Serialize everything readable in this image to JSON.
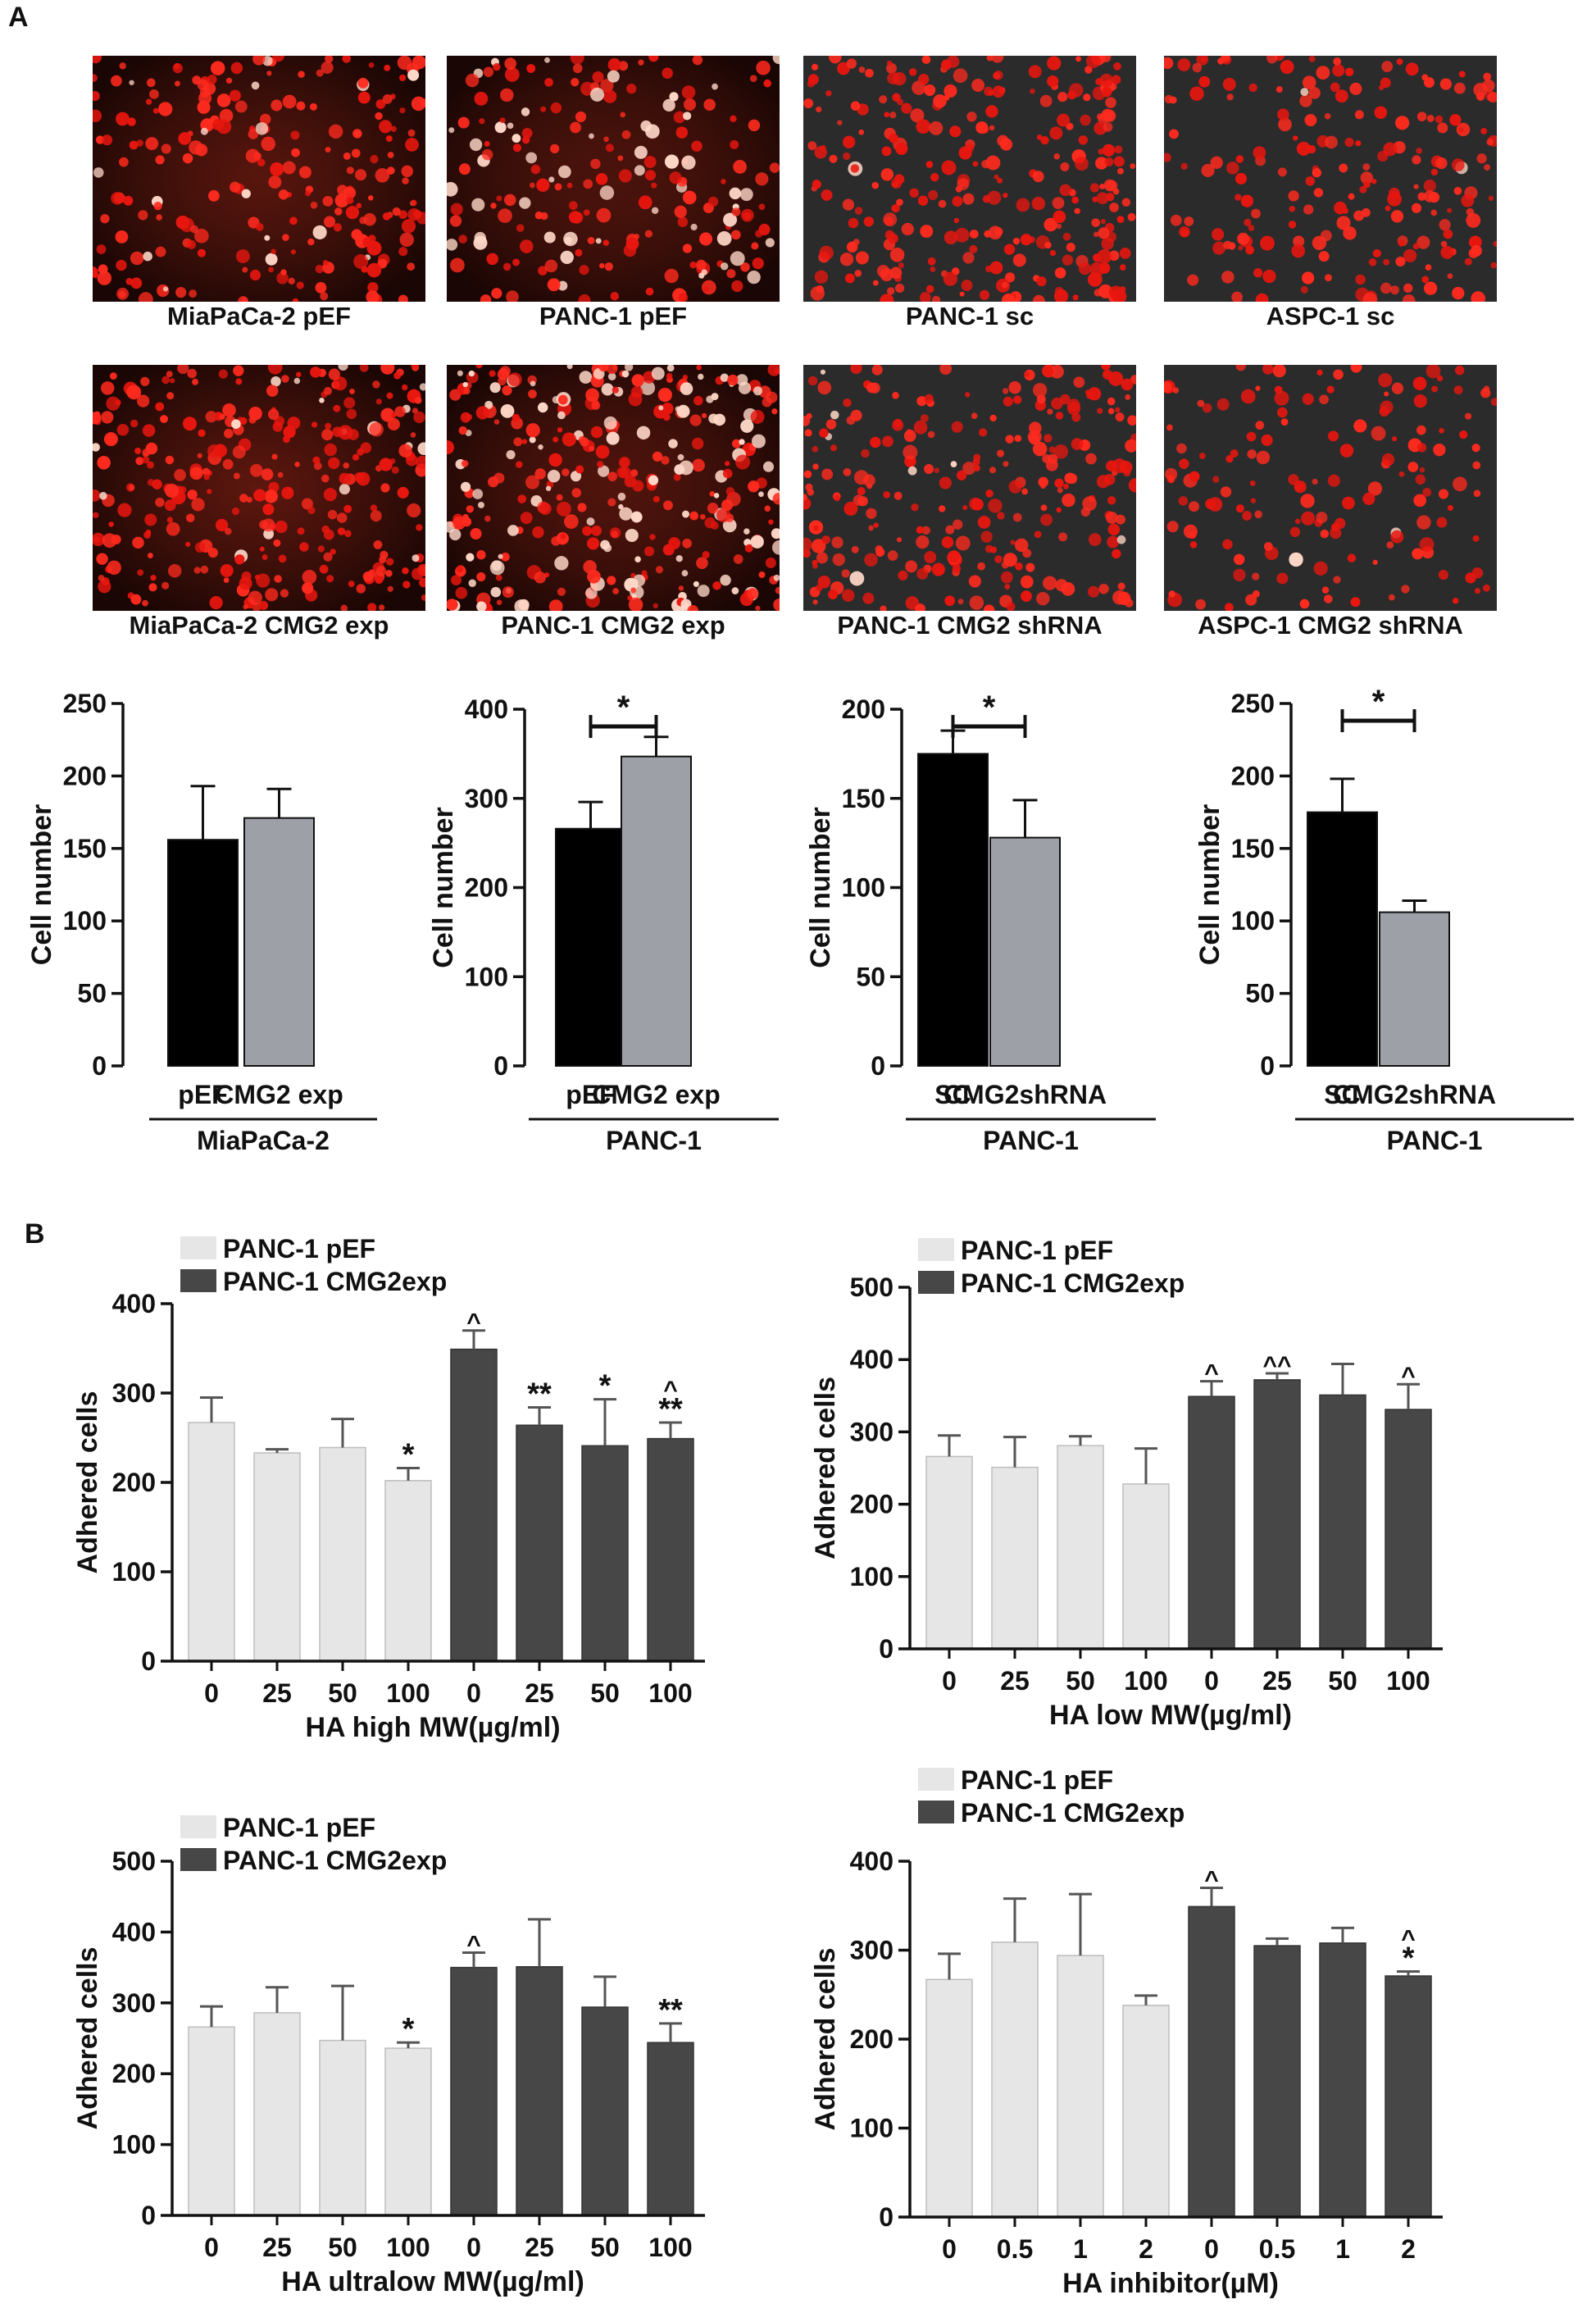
{
  "panels": {
    "a": "A",
    "b": "B"
  },
  "micrographs": [
    {
      "label": "MiaPaCa-2 pEF",
      "seed": 11,
      "density": 230,
      "glow": 0.35,
      "bright": 0.04
    },
    {
      "label": "PANC-1 pEF",
      "seed": 23,
      "density": 200,
      "glow": 0.25,
      "bright": 0.25
    },
    {
      "label": "PANC-1 sc",
      "seed": 37,
      "density": 280,
      "glow": 0.0,
      "bright": 0.02
    },
    {
      "label": "ASPC-1 sc",
      "seed": 41,
      "density": 200,
      "glow": 0.0,
      "bright": 0.02
    },
    {
      "label": "MiaPaCa-2 CMG2 exp",
      "seed": 53,
      "density": 300,
      "glow": 0.4,
      "bright": 0.05
    },
    {
      "label": "PANC-1 CMG2 exp",
      "seed": 67,
      "density": 340,
      "glow": 0.3,
      "bright": 0.35
    },
    {
      "label": "PANC-1 CMG2 shRNA",
      "seed": 71,
      "density": 260,
      "glow": 0.0,
      "bright": 0.02
    },
    {
      "label": "ASPC-1 CMG2 shRNA",
      "seed": 83,
      "density": 150,
      "glow": 0.0,
      "bright": 0.02
    }
  ],
  "colors": {
    "black_bar": "#000000",
    "grey_bar": "#9ea0a8",
    "light_bar": "#e6e6e6",
    "dark_bar": "#474747"
  },
  "chart_data": [
    {
      "type": "bar",
      "ylabel": "Cell number",
      "ylim": [
        0,
        250
      ],
      "yticks": [
        0,
        50,
        100,
        150,
        200,
        250
      ],
      "categories": [
        "pEF",
        "CMG2 exp"
      ],
      "group_label": "MiaPaCa-2",
      "values": [
        156,
        171
      ],
      "errors": [
        37,
        20
      ],
      "colors": [
        "black",
        "grey"
      ],
      "significance": null
    },
    {
      "type": "bar",
      "ylabel": "Cell number",
      "ylim": [
        0,
        400
      ],
      "yticks": [
        0,
        100,
        200,
        300,
        400
      ],
      "categories": [
        "pEF",
        "CMG2 exp"
      ],
      "group_label": "PANC-1",
      "values": [
        266,
        347
      ],
      "errors": [
        30,
        22
      ],
      "colors": [
        "black",
        "grey"
      ],
      "significance": "*"
    },
    {
      "type": "bar",
      "ylabel": "Cell number",
      "ylim": [
        0,
        200
      ],
      "yticks": [
        0,
        50,
        100,
        150,
        200
      ],
      "categories": [
        "SC",
        "CMG2shRNA"
      ],
      "group_label": "PANC-1",
      "values": [
        175,
        128
      ],
      "errors": [
        13,
        21
      ],
      "colors": [
        "black",
        "grey"
      ],
      "significance": "*"
    },
    {
      "type": "bar",
      "ylabel": "Cell number",
      "ylim": [
        0,
        250
      ],
      "yticks": [
        0,
        50,
        100,
        150,
        200,
        250
      ],
      "categories": [
        "SC",
        "CMG2shRNA"
      ],
      "group_label": "PANC-1",
      "values": [
        175,
        106
      ],
      "errors": [
        23,
        8
      ],
      "colors": [
        "black",
        "grey"
      ],
      "significance": "*"
    },
    {
      "type": "bar",
      "ylabel": "Adhered cells",
      "xlabel": "HA high MW(µg/ml)",
      "ylim": [
        0,
        400
      ],
      "yticks": [
        0,
        100,
        200,
        300,
        400
      ],
      "categories": [
        "0",
        "25",
        "50",
        "100",
        "0",
        "25",
        "50",
        "100"
      ],
      "series": [
        {
          "name": "PANC-1 pEF"
        },
        {
          "name": "PANC-1 CMG2exp"
        }
      ],
      "values": [
        267,
        233,
        239,
        202,
        349,
        264,
        241,
        249
      ],
      "errors": [
        28,
        4,
        32,
        14,
        21,
        20,
        52,
        18
      ],
      "annotations": [
        "",
        "",
        "",
        "*",
        "^",
        "**",
        "*",
        "^\n**"
      ]
    },
    {
      "type": "bar",
      "ylabel": "Adhered cells",
      "xlabel": "HA low MW(µg/ml)",
      "ylim": [
        0,
        500
      ],
      "yticks": [
        0,
        100,
        200,
        300,
        400,
        500
      ],
      "categories": [
        "0",
        "25",
        "50",
        "100",
        "0",
        "25",
        "50",
        "100"
      ],
      "series": [
        {
          "name": "PANC-1 pEF"
        },
        {
          "name": "PANC-1 CMG2exp"
        }
      ],
      "values": [
        266,
        251,
        281,
        228,
        349,
        372,
        351,
        331
      ],
      "errors": [
        29,
        42,
        13,
        49,
        21,
        9,
        43,
        35
      ],
      "annotations": [
        "",
        "",
        "",
        "",
        "^",
        "^^",
        "",
        "^"
      ]
    },
    {
      "type": "bar",
      "ylabel": "Adhered cells",
      "xlabel": "HA ultralow MW(µg/ml)",
      "ylim": [
        0,
        500
      ],
      "yticks": [
        0,
        100,
        200,
        300,
        400,
        500
      ],
      "categories": [
        "0",
        "25",
        "50",
        "100",
        "0",
        "25",
        "50",
        "100"
      ],
      "series": [
        {
          "name": "PANC-1 pEF"
        },
        {
          "name": "PANC-1 CMG2exp"
        }
      ],
      "values": [
        266,
        286,
        247,
        236,
        350,
        351,
        294,
        244
      ],
      "errors": [
        29,
        36,
        77,
        8,
        21,
        67,
        43,
        27
      ],
      "annotations": [
        "",
        "",
        "",
        "*",
        "^",
        "",
        "",
        "**"
      ]
    },
    {
      "type": "bar",
      "ylabel": "Adhered cells",
      "xlabel": "HA inhibitor(µM)",
      "ylim": [
        0,
        400
      ],
      "yticks": [
        0,
        100,
        200,
        300,
        400
      ],
      "categories": [
        "0",
        "0.5",
        "1",
        "2",
        "0",
        "0.5",
        "1",
        "2"
      ],
      "series": [
        {
          "name": "PANC-1 pEF"
        },
        {
          "name": "PANC-1 CMG2exp"
        }
      ],
      "values": [
        267,
        309,
        294,
        238,
        349,
        305,
        308,
        271
      ],
      "errors": [
        29,
        49,
        69,
        11,
        21,
        8,
        17,
        5
      ],
      "annotations": [
        "",
        "",
        "",
        "",
        "^",
        "",
        "",
        "^\n*"
      ]
    }
  ]
}
